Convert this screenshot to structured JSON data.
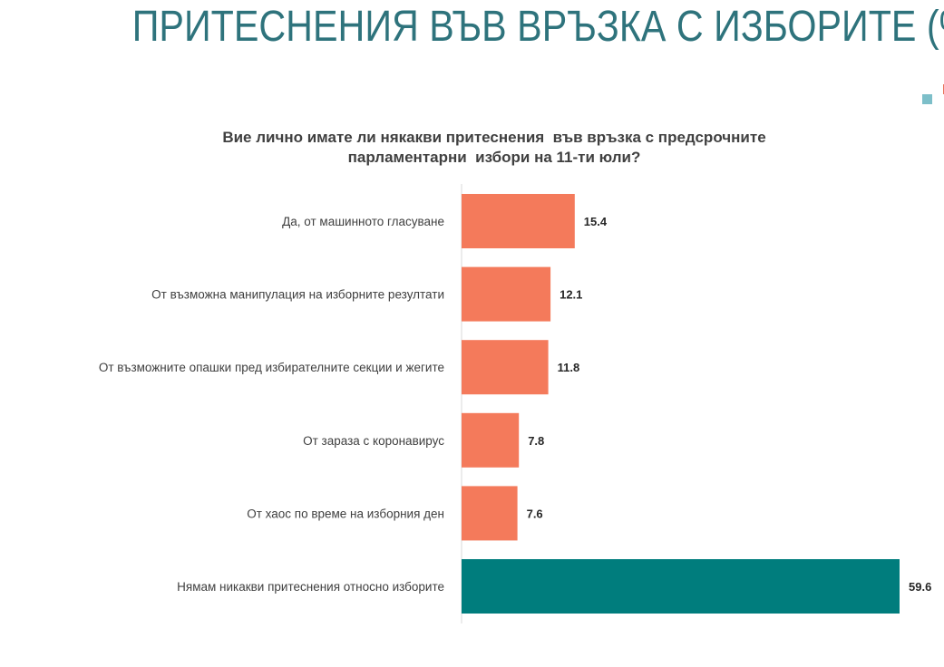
{
  "header": {
    "title": "ПРИТЕСНЕНИЯ ВЪВ ВРЪЗКА С ИЗБОРИТЕ (%)"
  },
  "chart_data": {
    "type": "bar",
    "orientation": "horizontal",
    "title_lines": [
      "Вие лично имате ли някакви притеснения  във връзка с предсрочните",
      "парламентарни  избори на 11-ти юли?"
    ],
    "categories": [
      "Да, от машинното гласуване",
      "От възможна манипулация на изборните резултати",
      "От възможните опашки пред избирателните секции и жегите",
      "От зараза с коронавирус",
      "От хаос по време на изборния ден",
      "Нямам никакви притеснения относно изборите"
    ],
    "values": [
      15.4,
      12.1,
      11.8,
      7.8,
      7.6,
      59.6
    ],
    "value_labels": [
      "15.4",
      "12.1",
      "11.8",
      "7.8",
      "7.6",
      "59.6"
    ],
    "bar_colors": [
      "#F47A5B",
      "#F47A5B",
      "#F47A5B",
      "#F47A5B",
      "#F47A5B",
      "#007D7D"
    ],
    "xlim": [
      0,
      60
    ],
    "grid": false,
    "legend": "none"
  }
}
